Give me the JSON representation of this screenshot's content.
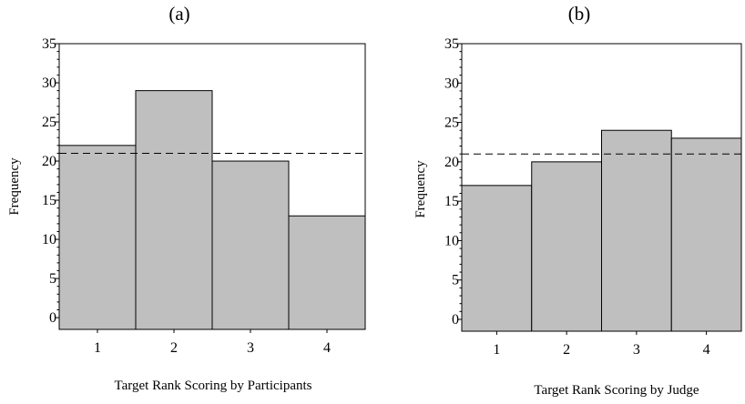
{
  "chart_data": [
    {
      "type": "bar",
      "title": "(a)",
      "xlabel": "Target Rank Scoring by Participants",
      "ylabel": "Frequency",
      "categories": [
        "1",
        "2",
        "3",
        "4"
      ],
      "values": [
        22,
        29,
        20,
        13
      ],
      "reference_line": 21,
      "ylim": [
        -1.5,
        35
      ],
      "yticks": [
        0,
        5,
        10,
        15,
        20,
        25,
        30,
        35
      ],
      "bar_color": "#bfbfbf",
      "reference_line_style": "dashed",
      "grid": false
    },
    {
      "type": "bar",
      "title": "(b)",
      "xlabel": "Target Rank Scoring by Judge",
      "ylabel": "Frequency",
      "categories": [
        "1",
        "2",
        "3",
        "4"
      ],
      "values": [
        17,
        20,
        24,
        23
      ],
      "reference_line": 21,
      "ylim": [
        -1.5,
        35
      ],
      "yticks": [
        0,
        5,
        10,
        15,
        20,
        25,
        30,
        35
      ],
      "bar_color": "#bfbfbf",
      "reference_line_style": "dashed",
      "grid": false
    }
  ]
}
